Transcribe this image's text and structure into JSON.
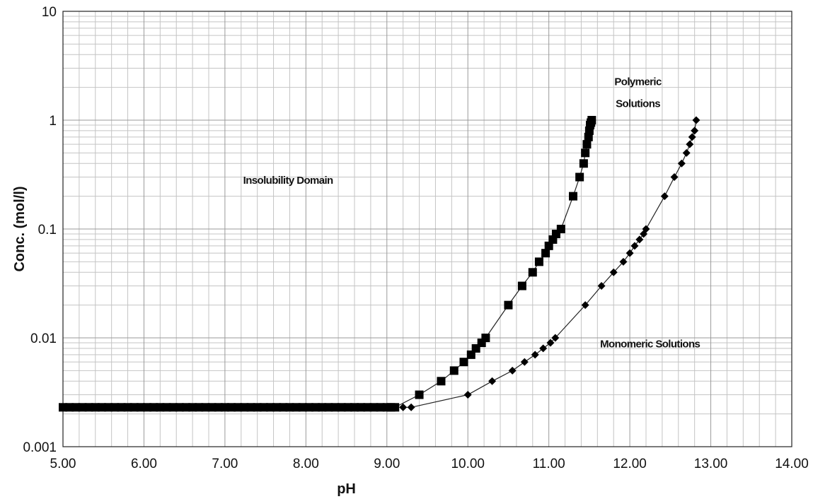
{
  "chart_data": {
    "type": "scatter",
    "xlabel": "pH",
    "ylabel": "Conc. (mol/l)",
    "x_scale": "linear",
    "y_scale": "log",
    "xlim": [
      5.0,
      14.0
    ],
    "ylim": [
      0.001,
      10
    ],
    "grid": true,
    "x_ticks": [
      "5.00",
      "6.00",
      "7.00",
      "8.00",
      "9.00",
      "10.00",
      "11.00",
      "12.00",
      "13.00",
      "14.00"
    ],
    "y_ticks": [
      "0.001",
      "0.01",
      "0.1",
      "1",
      "10"
    ],
    "annotations": [
      {
        "text": "Insolubility Domain",
        "x": 7.78,
        "y": 0.26
      },
      {
        "text": "Polymeric",
        "x": 12.1,
        "y": 2.1
      },
      {
        "text": "Solutions",
        "x": 12.1,
        "y": 1.32
      },
      {
        "text": "Monomeric Solutions",
        "x": 12.25,
        "y": 0.0082
      }
    ],
    "series": [
      {
        "marker": "square",
        "color": "#000000",
        "x": [
          5.0,
          5.08,
          5.16,
          5.24,
          5.32,
          5.4,
          5.48,
          5.56,
          5.64,
          5.72,
          5.8,
          5.88,
          5.96,
          6.04,
          6.12,
          6.2,
          6.28,
          6.36,
          6.44,
          6.52,
          6.6,
          6.68,
          6.76,
          6.84,
          6.92,
          7.0,
          7.08,
          7.16,
          7.24,
          7.32,
          7.4,
          7.48,
          7.56,
          7.64,
          7.72,
          7.8,
          7.88,
          7.96,
          8.04,
          8.12,
          8.2,
          8.28,
          8.36,
          8.44,
          8.52,
          8.6,
          8.68,
          8.76,
          8.84,
          8.92,
          9.0,
          9.05,
          9.1,
          9.4,
          9.67,
          9.83,
          9.95,
          10.04,
          10.1,
          10.17,
          10.22,
          10.5,
          10.67,
          10.8,
          10.88,
          10.96,
          11.0,
          11.05,
          11.09,
          11.15,
          11.3,
          11.38,
          11.43,
          11.45,
          11.47,
          11.49,
          11.5,
          11.51,
          11.52,
          11.53
        ],
        "y": [
          0.0023,
          0.0023,
          0.0023,
          0.0023,
          0.0023,
          0.0023,
          0.0023,
          0.0023,
          0.0023,
          0.0023,
          0.0023,
          0.0023,
          0.0023,
          0.0023,
          0.0023,
          0.0023,
          0.0023,
          0.0023,
          0.0023,
          0.0023,
          0.0023,
          0.0023,
          0.0023,
          0.0023,
          0.0023,
          0.0023,
          0.0023,
          0.0023,
          0.0023,
          0.0023,
          0.0023,
          0.0023,
          0.0023,
          0.0023,
          0.0023,
          0.0023,
          0.0023,
          0.0023,
          0.0023,
          0.0023,
          0.0023,
          0.0023,
          0.0023,
          0.0023,
          0.0023,
          0.0023,
          0.0023,
          0.0023,
          0.0023,
          0.0023,
          0.0023,
          0.0023,
          0.0023,
          0.003,
          0.004,
          0.005,
          0.006,
          0.007,
          0.008,
          0.009,
          0.01,
          0.02,
          0.03,
          0.04,
          0.05,
          0.06,
          0.07,
          0.08,
          0.09,
          0.1,
          0.2,
          0.3,
          0.4,
          0.5,
          0.6,
          0.7,
          0.8,
          0.9,
          0.95,
          1.0
        ]
      },
      {
        "marker": "diamond",
        "color": "#000000",
        "x": [
          9.2,
          9.3,
          10.0,
          10.3,
          10.55,
          10.7,
          10.83,
          10.93,
          11.02,
          11.08,
          11.45,
          11.65,
          11.8,
          11.92,
          12.0,
          12.06,
          12.12,
          12.17,
          12.2,
          12.43,
          12.55,
          12.64,
          12.7,
          12.74,
          12.77,
          12.8,
          12.82
        ],
        "y": [
          0.0023,
          0.0023,
          0.003,
          0.004,
          0.005,
          0.006,
          0.007,
          0.008,
          0.009,
          0.01,
          0.02,
          0.03,
          0.04,
          0.05,
          0.06,
          0.07,
          0.08,
          0.09,
          0.1,
          0.2,
          0.3,
          0.4,
          0.5,
          0.6,
          0.7,
          0.8,
          1.0
        ]
      }
    ]
  }
}
